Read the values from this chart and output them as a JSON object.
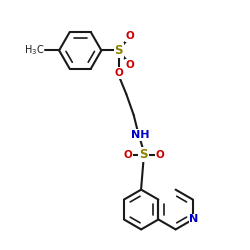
{
  "bg": "#ffffff",
  "bc": "#1a1a1a",
  "sc": "#8b8000",
  "oc": "#cc0000",
  "nc": "#0000cc",
  "lw": 1.5,
  "lw_inner": 1.2,
  "fs": 7.5,
  "fs_ch3": 7.0,
  "figsize": [
    2.5,
    2.5
  ],
  "dpi": 100,
  "xlim": [
    0,
    10
  ],
  "ylim": [
    0,
    10
  ]
}
